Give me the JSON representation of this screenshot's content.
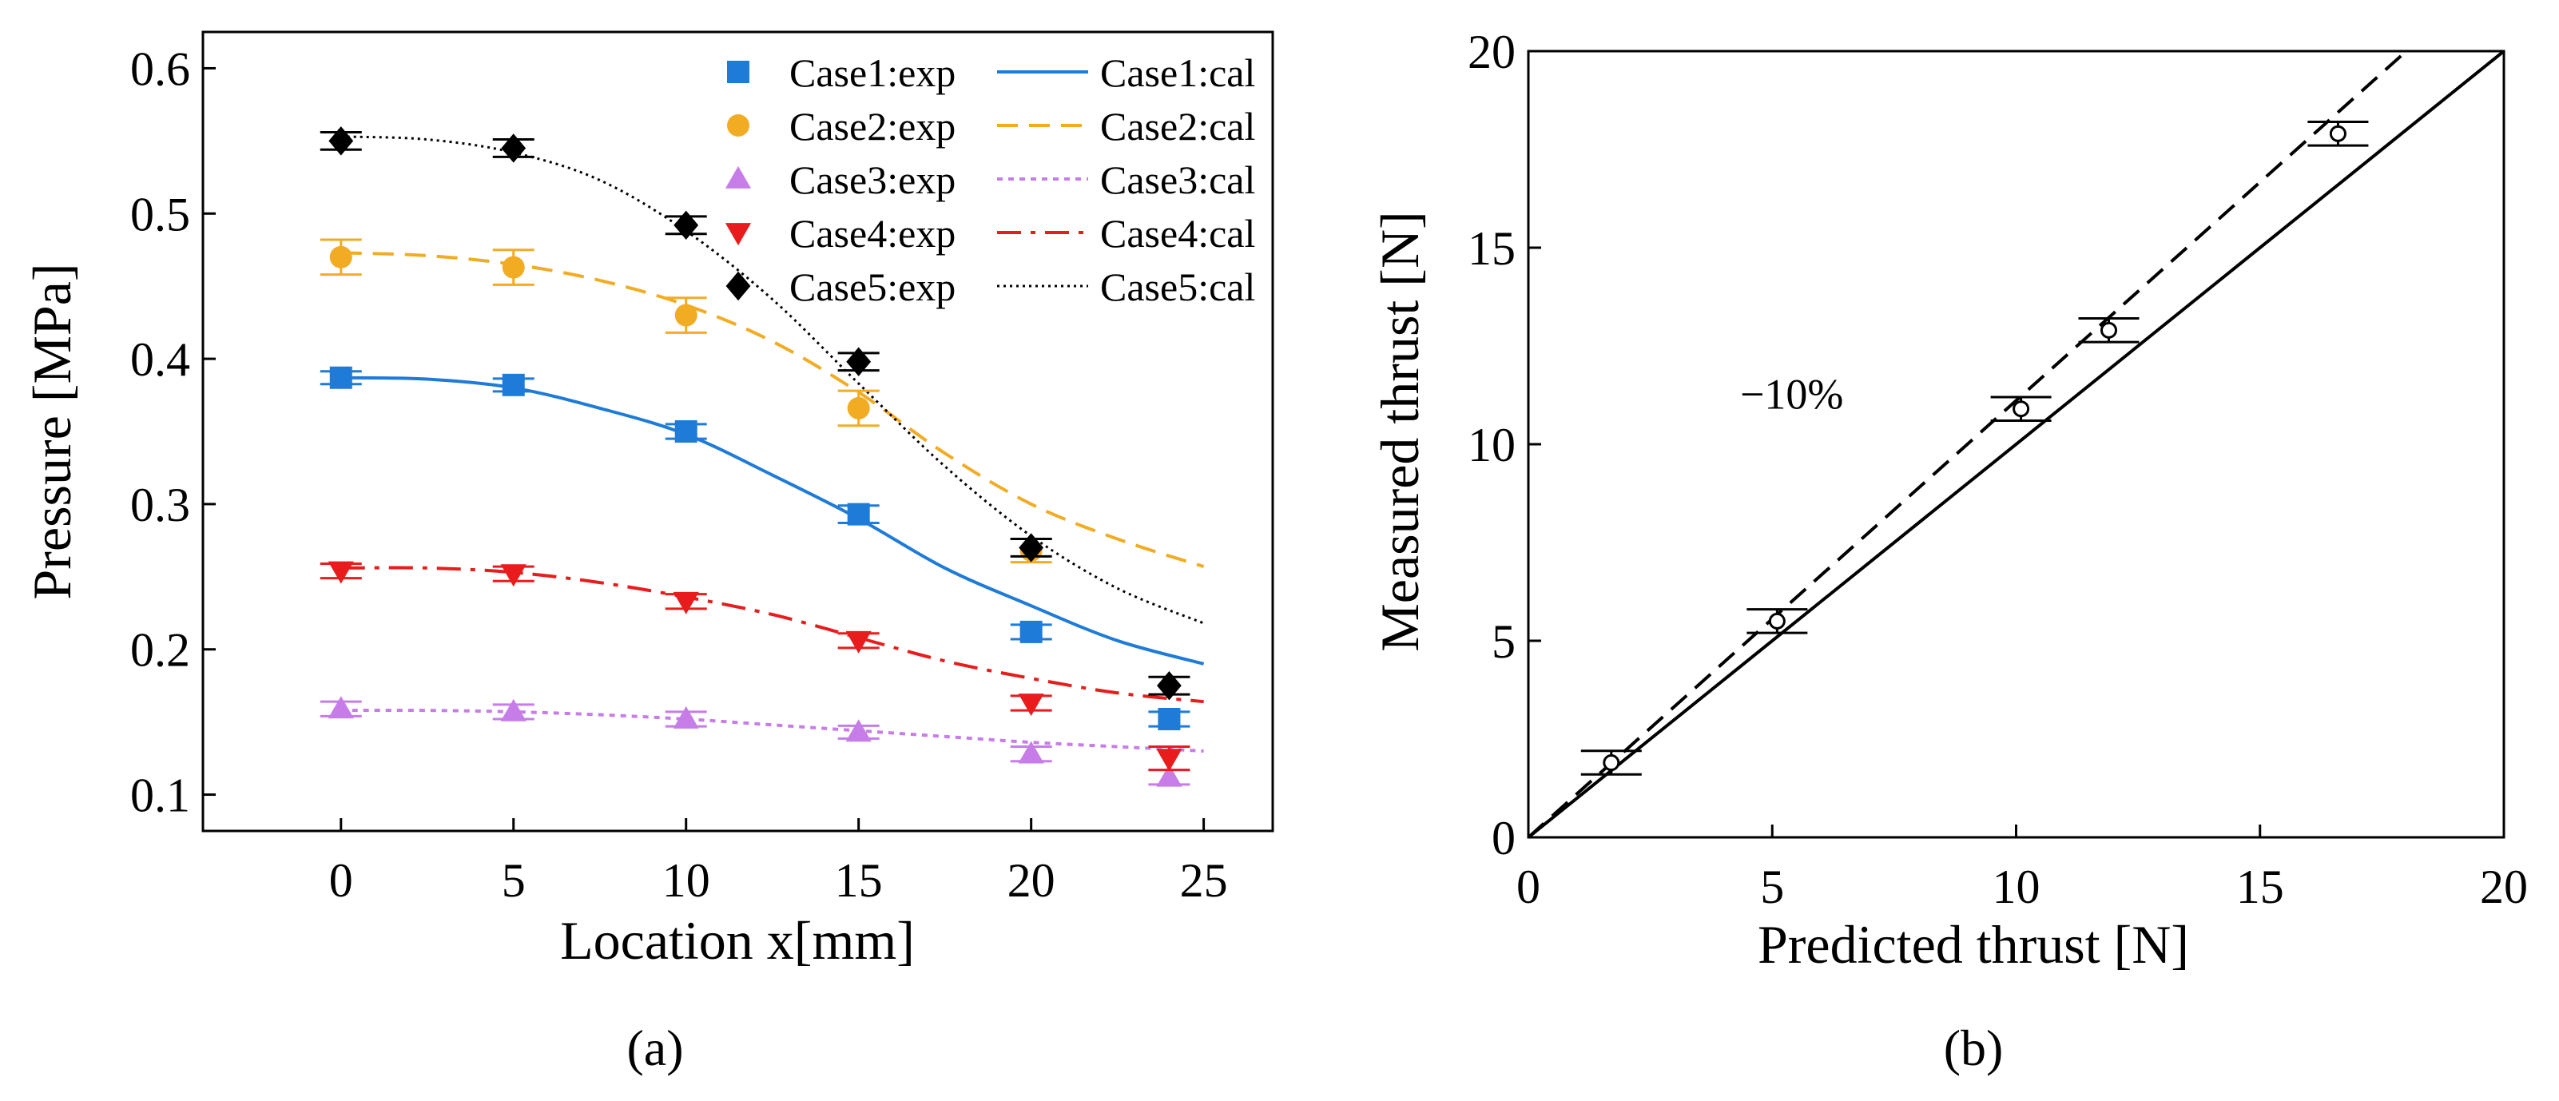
{
  "chart_data": [
    {
      "type": "line",
      "panel_label": "(a)",
      "title": "",
      "xlabel": "Location x[mm]",
      "ylabel": "Pressure [MPa]",
      "xlim": [
        -4,
        27
      ],
      "ylim": [
        0.075,
        0.625
      ],
      "xticks": [
        0,
        5,
        10,
        15,
        20,
        25
      ],
      "xtick_labels": [
        "0",
        "5",
        "10",
        "15",
        "20",
        "25"
      ],
      "yticks": [
        0.1,
        0.2,
        0.3,
        0.4,
        0.5,
        0.6
      ],
      "ytick_labels": [
        "0.1",
        "0.2",
        "0.3",
        "0.4",
        "0.5",
        "0.6"
      ],
      "grid": false,
      "legend_position": "top-right",
      "series": [
        {
          "name": "Case1",
          "color": "#1f7bd8",
          "marker": "square",
          "dash": "solid",
          "exp_label": "Case1:exp",
          "cal_label": "Case1:cal",
          "exp": {
            "x": [
              0,
              5,
              10,
              15,
              20,
              24
            ],
            "y": [
              0.387,
              0.382,
              0.35,
              0.293,
              0.212,
              0.152
            ],
            "err": [
              0.004,
              0.004,
              0.005,
              0.006,
              0.005,
              0.005
            ]
          },
          "cal": {
            "x": [
              0,
              2.5,
              5,
              7.5,
              10,
              12.5,
              15,
              17.5,
              20,
              22.5,
              25
            ],
            "y": [
              0.387,
              0.386,
              0.38,
              0.366,
              0.348,
              0.32,
              0.29,
              0.256,
              0.23,
              0.206,
              0.19
            ]
          }
        },
        {
          "name": "Case2",
          "color": "#f2ac24",
          "marker": "circle",
          "dash": "dashed",
          "exp_label": "Case2:exp",
          "cal_label": "Case2:cal",
          "exp": {
            "x": [
              0,
              5,
              10,
              15,
              20
            ],
            "y": [
              0.47,
              0.463,
              0.43,
              0.366,
              0.268
            ],
            "err": [
              0.012,
              0.012,
              0.012,
              0.012,
              0.008
            ]
          },
          "cal": {
            "x": [
              0,
              2.5,
              5,
              7.5,
              10,
              12.5,
              15,
              17.5,
              20,
              22.5,
              25
            ],
            "y": [
              0.473,
              0.471,
              0.465,
              0.454,
              0.437,
              0.412,
              0.377,
              0.335,
              0.3,
              0.276,
              0.257
            ]
          }
        },
        {
          "name": "Case3",
          "color": "#c77de8",
          "marker": "triangle-up",
          "dash": "dotted",
          "exp_label": "Case3:exp",
          "cal_label": "Case3:cal",
          "exp": {
            "x": [
              0,
              5,
              10,
              15,
              20,
              24
            ],
            "y": [
              0.159,
              0.157,
              0.152,
              0.143,
              0.128,
              0.112
            ],
            "err": [
              0.005,
              0.005,
              0.005,
              0.004,
              0.005,
              0.005
            ]
          },
          "cal": {
            "x": [
              0,
              2.5,
              5,
              7.5,
              10,
              12.5,
              15,
              17.5,
              20,
              22.5,
              25
            ],
            "y": [
              0.158,
              0.158,
              0.157,
              0.155,
              0.152,
              0.148,
              0.144,
              0.14,
              0.136,
              0.133,
              0.13
            ]
          }
        },
        {
          "name": "Case4",
          "color": "#e81c1c",
          "marker": "triangle-down",
          "dash": "dashdot",
          "exp_label": "Case4:exp",
          "cal_label": "Case4:cal",
          "exp": {
            "x": [
              0,
              5,
              10,
              15,
              20,
              24
            ],
            "y": [
              0.254,
              0.252,
              0.233,
              0.206,
              0.163,
              0.125
            ],
            "err": [
              0.005,
              0.005,
              0.005,
              0.005,
              0.005,
              0.008
            ]
          },
          "cal": {
            "x": [
              0,
              2.5,
              5,
              7.5,
              10,
              12.5,
              15,
              17.5,
              20,
              22.5,
              25
            ],
            "y": [
              0.256,
              0.256,
              0.253,
              0.246,
              0.236,
              0.224,
              0.208,
              0.192,
              0.18,
              0.17,
              0.164
            ]
          }
        },
        {
          "name": "Case5",
          "color": "#000000",
          "marker": "diamond",
          "dash": "fine-dotted",
          "exp_label": "Case5:exp",
          "cal_label": "Case5:cal",
          "exp": {
            "x": [
              0,
              5,
              10,
              15,
              20,
              24
            ],
            "y": [
              0.55,
              0.545,
              0.492,
              0.398,
              0.27,
              0.175
            ],
            "err": [
              0.006,
              0.006,
              0.006,
              0.006,
              0.006,
              0.006
            ]
          },
          "cal": {
            "x": [
              0,
              2.5,
              5,
              7.5,
              10,
              12.5,
              15,
              17.5,
              20,
              22.5,
              25
            ],
            "y": [
              0.553,
              0.551,
              0.542,
              0.523,
              0.488,
              0.441,
              0.383,
              0.326,
              0.278,
              0.242,
              0.218
            ]
          }
        }
      ]
    },
    {
      "type": "scatter",
      "panel_label": "(b)",
      "title": "",
      "xlabel": "Predicted thrust [N]",
      "ylabel": "Measured thrust [N]",
      "xlim": [
        0,
        20
      ],
      "ylim": [
        0,
        20
      ],
      "xticks": [
        0,
        5,
        10,
        15,
        20
      ],
      "xtick_labels": [
        "0",
        "5",
        "10",
        "15",
        "20"
      ],
      "yticks": [
        0,
        5,
        10,
        15,
        20
      ],
      "ytick_labels": [
        "0",
        "5",
        "10",
        "15",
        "20"
      ],
      "grid": false,
      "annotation": "−10%",
      "annotation_at": {
        "x": 5.4,
        "y": 10.9
      },
      "points": {
        "x": [
          1.7,
          5.1,
          10.1,
          11.9,
          16.6
        ],
        "y": [
          1.9,
          5.5,
          10.9,
          12.9,
          17.9
        ],
        "err": [
          0.3,
          0.3,
          0.3,
          0.3,
          0.3
        ]
      },
      "reference_lines": [
        {
          "name": "y = x",
          "slope": 1.0,
          "dash": "solid"
        },
        {
          "name": "-10%",
          "slope": 1.1111,
          "dash": "dashed"
        }
      ]
    }
  ]
}
